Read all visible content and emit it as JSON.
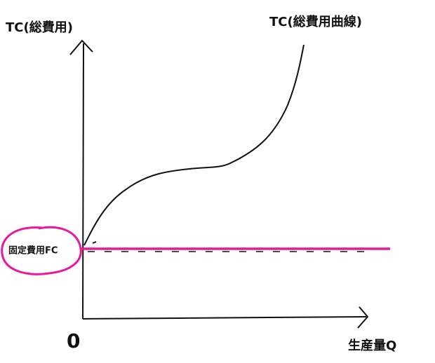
{
  "axes": {
    "y_label": "TC(総費用)",
    "x_label": "生産量Q",
    "origin": "0"
  },
  "curves": {
    "tc_label": "TC(総費用曲線)",
    "fc_label": "固定費用FC"
  }
}
